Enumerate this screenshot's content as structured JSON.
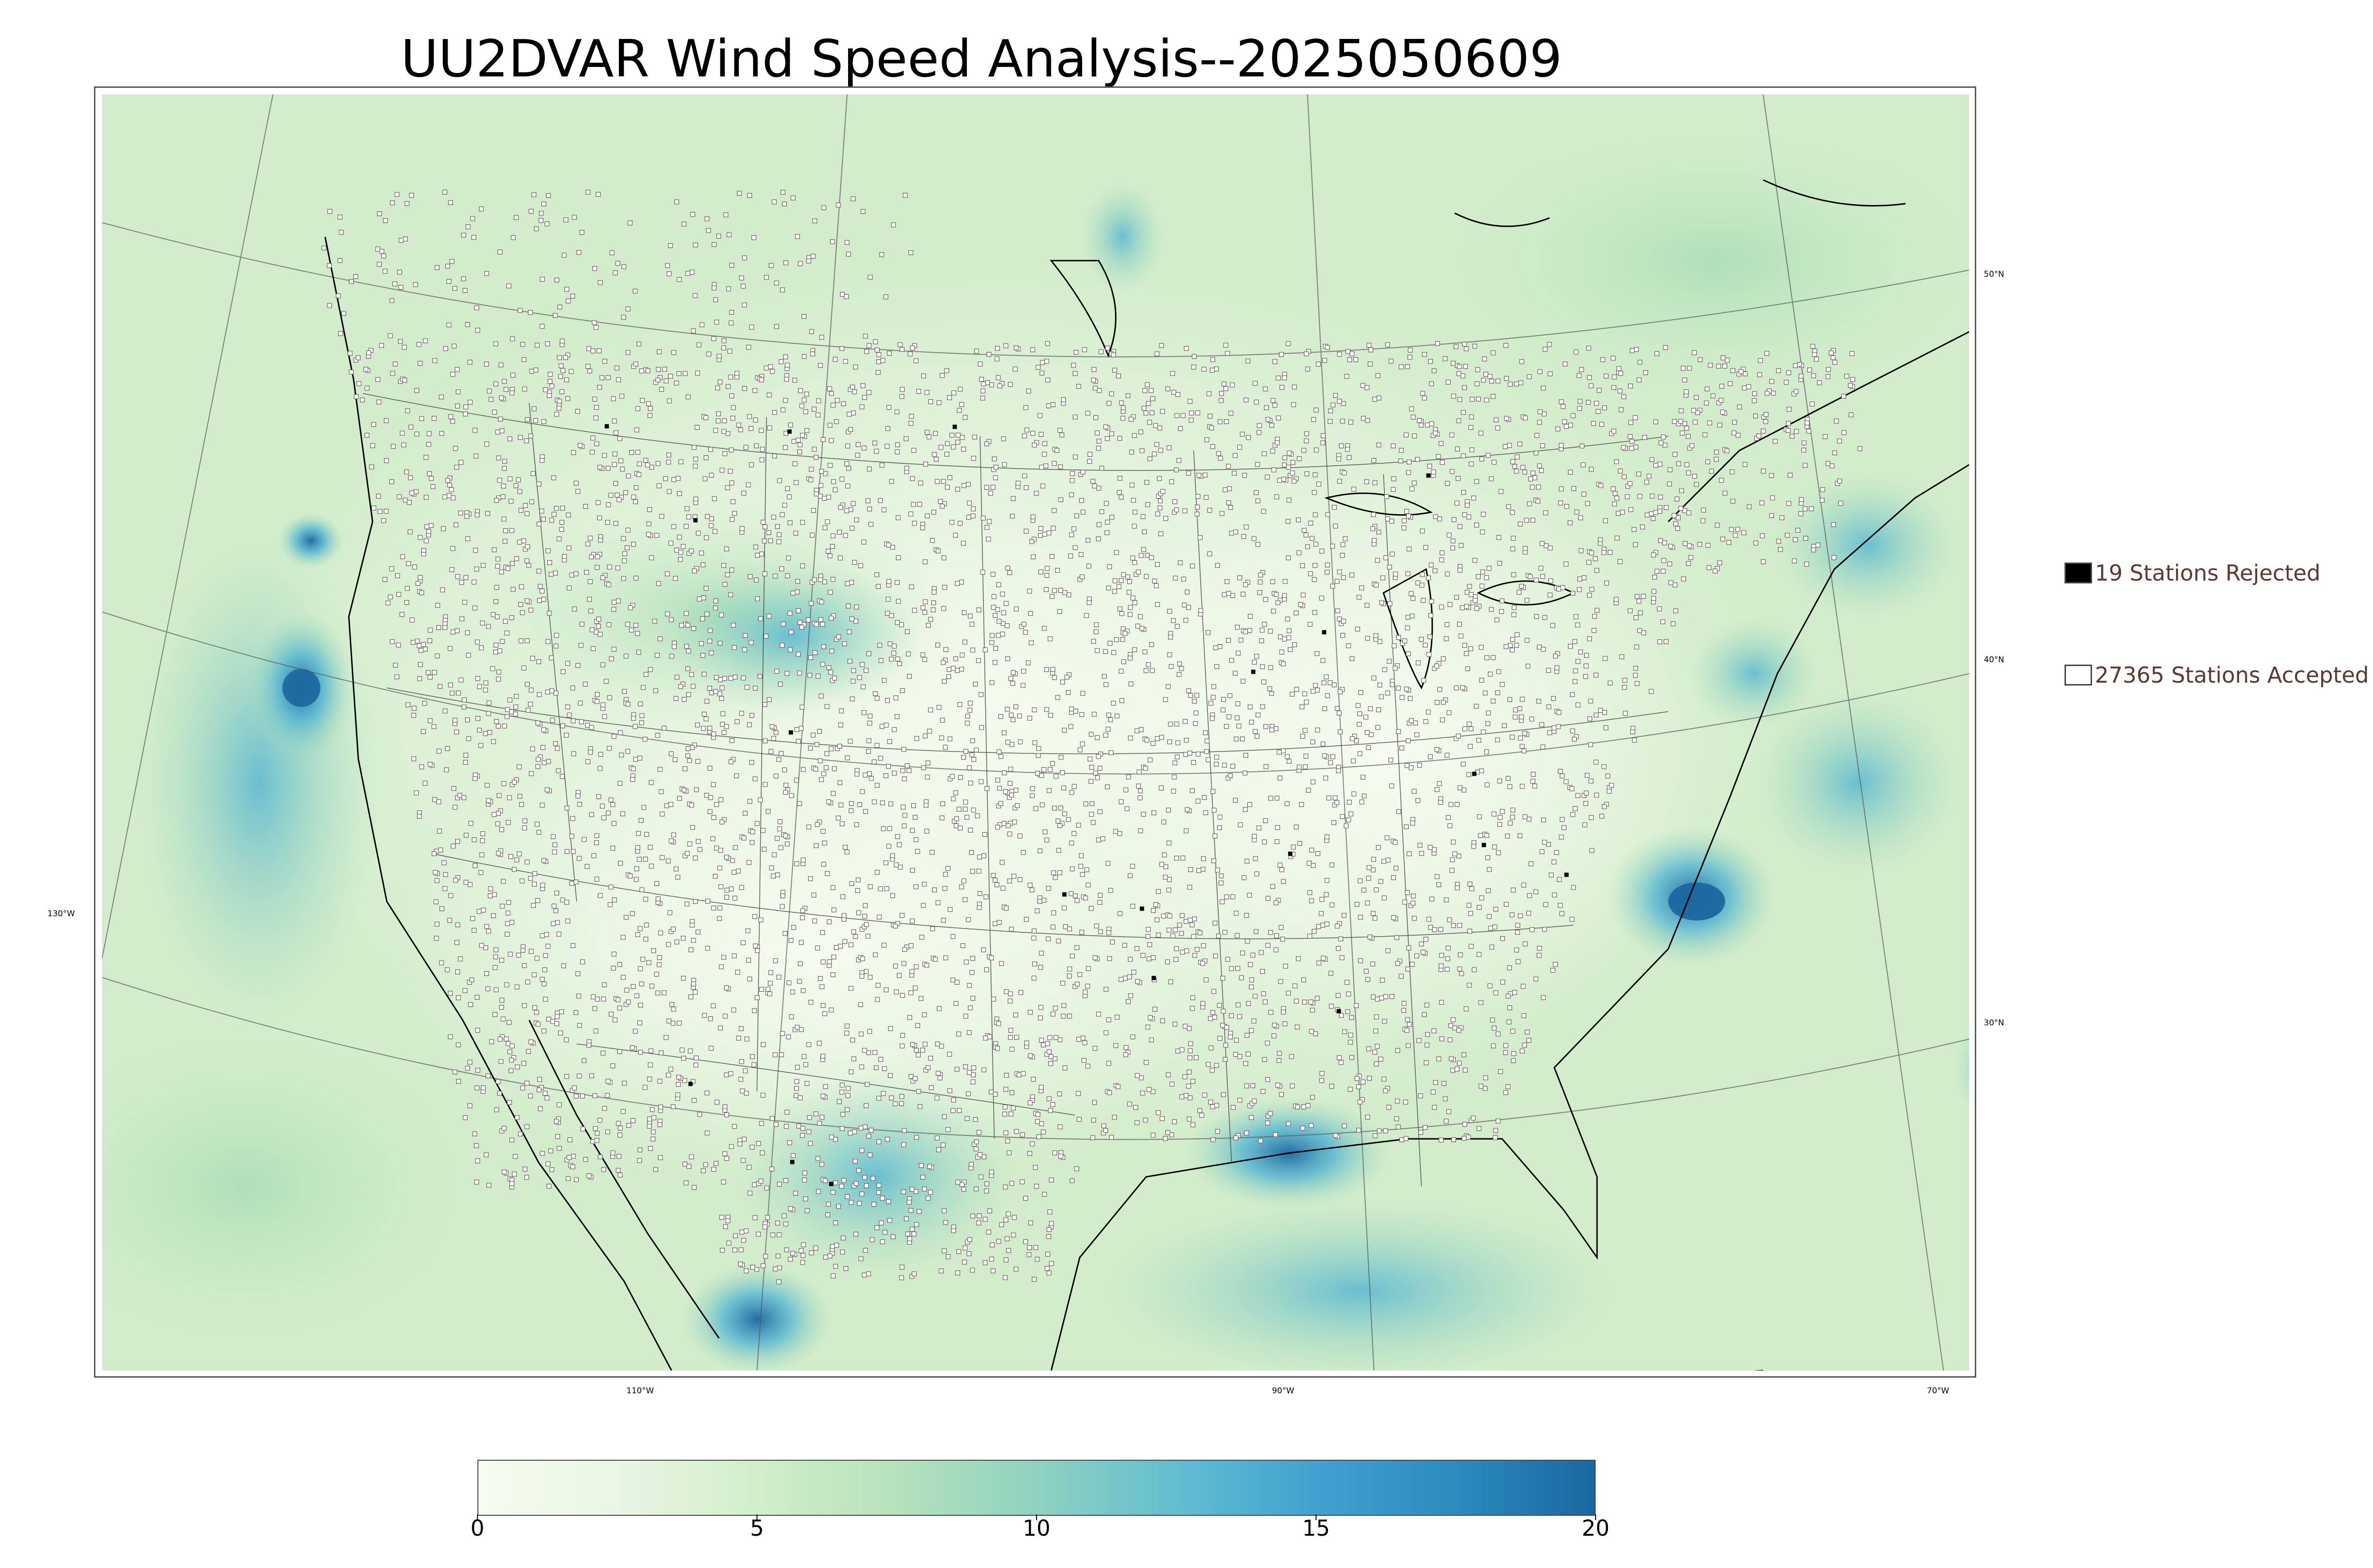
{
  "title": "UU2DVAR Wind Speed Analysis--2025050609",
  "map": {
    "field": "wind speed",
    "palette": [
      "#f7fcf0",
      "#e0f3db",
      "#ccebc5",
      "#a8ddb5",
      "#7bccc4",
      "#4eb3d3",
      "#2b8cbe",
      "#1a67a0"
    ],
    "land_outline_color": "#000000",
    "station_marker_color": "#6b5a5a",
    "lon_labels": [
      "110°W",
      "90°W",
      "70°W",
      "130°W"
    ],
    "lat_labels": [
      "50°N",
      "40°N",
      "30°N"
    ]
  },
  "legend": {
    "rejected": {
      "label": "19 Stations Rejected",
      "color": "#000000"
    },
    "accepted": {
      "label": "27365 Stations Accepted",
      "color": "#ffffff"
    }
  },
  "colorbar": {
    "min": 0,
    "max": 20,
    "ticks": [
      "0",
      "5",
      "10",
      "15",
      "20"
    ],
    "stops": [
      "#f7fcf0",
      "#e8f6e3",
      "#d2eecb",
      "#b5e2bc",
      "#8fd2c0",
      "#63bed0",
      "#3fa2cf",
      "#2b8cbe",
      "#1a67a0"
    ]
  }
}
